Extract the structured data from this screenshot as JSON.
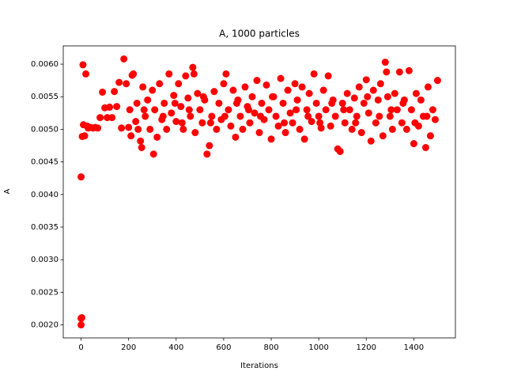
{
  "chart_data": {
    "type": "scatter",
    "title": "A, 1000 particles",
    "x_label": "Iterations",
    "y_label": "A",
    "color": "#ff0000",
    "x": [
      0,
      0,
      0,
      3,
      5,
      8,
      10,
      15,
      20,
      25,
      30,
      40,
      50,
      60,
      70,
      80,
      90,
      100,
      110,
      120,
      130,
      140,
      150,
      160,
      170,
      180,
      190,
      200,
      205,
      210,
      215,
      220,
      230,
      240,
      250,
      255,
      260,
      270,
      280,
      290,
      300,
      305,
      310,
      320,
      330,
      340,
      350,
      360,
      370,
      380,
      390,
      400,
      410,
      420,
      430,
      440,
      450,
      460,
      470,
      475,
      480,
      490,
      500,
      510,
      520,
      530,
      540,
      550,
      560,
      570,
      580,
      590,
      600,
      610,
      620,
      630,
      640,
      650,
      660,
      670,
      680,
      690,
      700,
      710,
      720,
      730,
      740,
      750,
      760,
      770,
      780,
      790,
      800,
      810,
      820,
      830,
      840,
      850,
      860,
      870,
      880,
      890,
      900,
      910,
      920,
      930,
      940,
      950,
      960,
      970,
      980,
      990,
      1000,
      1010,
      1020,
      1030,
      1040,
      1050,
      1060,
      1070,
      1080,
      1090,
      1100,
      1110,
      1120,
      1130,
      1140,
      1150,
      1160,
      1170,
      1180,
      1190,
      1200,
      1210,
      1220,
      1230,
      1240,
      1250,
      1260,
      1270,
      1280,
      1285,
      1290,
      1300,
      1310,
      1320,
      1330,
      1340,
      1350,
      1360,
      1370,
      1380,
      1390,
      1400,
      1410,
      1420,
      1430,
      1440,
      1450,
      1460,
      1470,
      1480,
      1490,
      1500,
      235,
      265,
      345,
      395,
      425,
      455,
      515,
      545,
      605,
      655,
      705,
      755,
      805,
      855,
      905,
      955,
      1005,
      1055,
      1105,
      1155,
      1205,
      1255,
      1305,
      1355,
      1405,
      1455
    ],
    "values": [
      0.00427,
      0.0021,
      0.002,
      0.00211,
      0.00489,
      0.00599,
      0.00507,
      0.0049,
      0.00585,
      0.00505,
      0.00502,
      0.00503,
      0.00502,
      0.00503,
      0.00502,
      0.00518,
      0.00557,
      0.00533,
      0.00518,
      0.00534,
      0.00518,
      0.00558,
      0.00535,
      0.00572,
      0.00502,
      0.00608,
      0.0057,
      0.00503,
      0.0053,
      0.0049,
      0.00583,
      0.00585,
      0.00512,
      0.005,
      0.00482,
      0.00472,
      0.00565,
      0.0052,
      0.00545,
      0.005,
      0.0056,
      0.00462,
      0.0053,
      0.00488,
      0.0057,
      0.00515,
      0.0054,
      0.005,
      0.00585,
      0.00525,
      0.00552,
      0.00512,
      0.0057,
      0.00535,
      0.005,
      0.00582,
      0.00548,
      0.0052,
      0.00595,
      0.00585,
      0.00495,
      0.00555,
      0.0053,
      0.0051,
      0.00545,
      0.00462,
      0.00475,
      0.0052,
      0.00558,
      0.005,
      0.0054,
      0.00515,
      0.0057,
      0.00585,
      0.0053,
      0.00505,
      0.0056,
      0.00488,
      0.00545,
      0.0052,
      0.005,
      0.00565,
      0.00535,
      0.0051,
      0.0055,
      0.00525,
      0.00575,
      0.00495,
      0.0054,
      0.00515,
      0.00568,
      0.0053,
      0.00485,
      0.0055,
      0.0052,
      0.00505,
      0.00578,
      0.0054,
      0.00495,
      0.0056,
      0.00525,
      0.0051,
      0.0057,
      0.00545,
      0.005,
      0.00565,
      0.00485,
      0.0053,
      0.00555,
      0.00512,
      0.00585,
      0.0054,
      0.0052,
      0.00502,
      0.0056,
      0.0053,
      0.00582,
      0.00505,
      0.00545,
      0.0052,
      0.0047,
      0.00466,
      0.0054,
      0.0051,
      0.00555,
      0.0053,
      0.005,
      0.00548,
      0.0052,
      0.00565,
      0.00495,
      0.0054,
      0.00576,
      0.00525,
      0.00482,
      0.0056,
      0.0051,
      0.00545,
      0.0057,
      0.0049,
      0.00603,
      0.00588,
      0.0055,
      0.0052,
      0.005,
      0.00555,
      0.0053,
      0.00588,
      0.0051,
      0.00545,
      0.005,
      0.0059,
      0.0053,
      0.00478,
      0.00555,
      0.00505,
      0.00545,
      0.0052,
      0.00472,
      0.00565,
      0.0049,
      0.0053,
      0.00515,
      0.00575,
      0.0054,
      0.0053,
      0.0052,
      0.0054,
      0.0051,
      0.0053,
      0.0055,
      0.0051,
      0.0052,
      0.0054,
      0.0053,
      0.0052,
      0.0055,
      0.0051,
      0.0053,
      0.0052,
      0.0051,
      0.0054,
      0.0053,
      0.0051,
      0.0055,
      0.0052,
      0.0053,
      0.0054,
      0.0051,
      0.0052
    ],
    "xlim": [
      -75,
      1575
    ],
    "ylim": [
      0.0018,
      0.00628
    ],
    "xticks": [
      0,
      200,
      400,
      600,
      800,
      1000,
      1200,
      1400
    ],
    "yticks": [
      {
        "value": 0.002,
        "label": "0.0020"
      },
      {
        "value": 0.0025,
        "label": "0.0025"
      },
      {
        "value": 0.003,
        "label": "0.0030"
      },
      {
        "value": 0.0035,
        "label": "0.0035"
      },
      {
        "value": 0.004,
        "label": "0.0040"
      },
      {
        "value": 0.0045,
        "label": "0.0045"
      },
      {
        "value": 0.005,
        "label": "0.0050"
      },
      {
        "value": 0.0055,
        "label": "0.0055"
      },
      {
        "value": 0.006,
        "label": "0.0060"
      }
    ]
  }
}
